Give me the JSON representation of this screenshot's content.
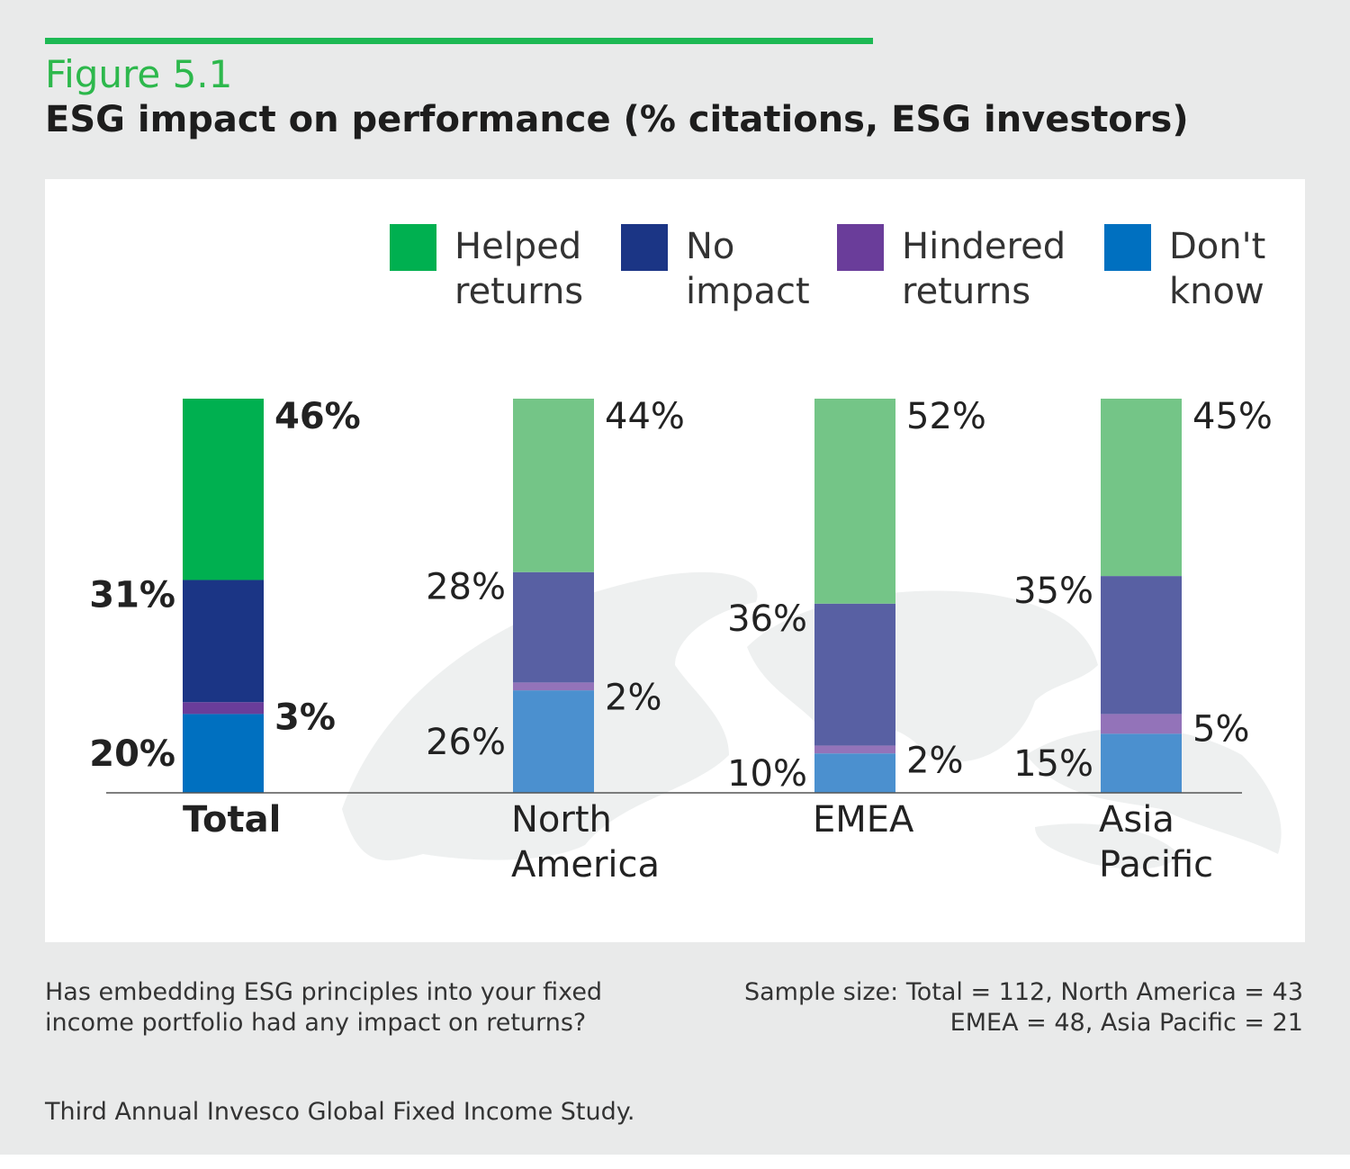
{
  "header": {
    "figure_label": "Figure 5.1",
    "title": "ESG impact on performance (% citations, ESG investors)"
  },
  "footer": {
    "question": "Has embedding ESG principles into your fixed\nincome portfolio had any impact on returns?",
    "sample_size": "Sample size: Total = 112, North America = 43\nEMEA = 48, Asia Pacific = 21",
    "source": "Third Annual Invesco Global Fixed Income Study."
  },
  "chart_data": {
    "type": "bar",
    "stacked": true,
    "categories": [
      "Total",
      "North America",
      "EMEA",
      "Asia Pacific"
    ],
    "category_lines": [
      [
        "Total"
      ],
      [
        "North",
        "America"
      ],
      [
        "EMEA"
      ],
      [
        "Asia",
        "Pacific"
      ]
    ],
    "series": [
      {
        "name": "Helped returns",
        "legend_lines": [
          "Helped",
          "returns"
        ],
        "values": [
          46,
          44,
          52,
          45
        ],
        "color": "#00b050",
        "light_color": "#74c587"
      },
      {
        "name": "No impact",
        "legend_lines": [
          "No",
          "impact"
        ],
        "values": [
          31,
          28,
          36,
          35
        ],
        "color": "#1b3585",
        "light_color": "#5860a3"
      },
      {
        "name": "Hindered returns",
        "legend_lines": [
          "Hindered",
          "returns"
        ],
        "values": [
          3,
          2,
          2,
          5
        ],
        "color": "#6a3d9a",
        "light_color": "#9373b9"
      },
      {
        "name": "Don't know",
        "legend_lines": [
          "Don't",
          "know"
        ],
        "values": [
          20,
          26,
          10,
          15
        ],
        "color": "#0070c0",
        "light_color": "#4b90cf"
      }
    ],
    "value_suffix": "%",
    "highlight_category": "Total",
    "legend_position": "top",
    "ylim": [
      0,
      100
    ]
  }
}
